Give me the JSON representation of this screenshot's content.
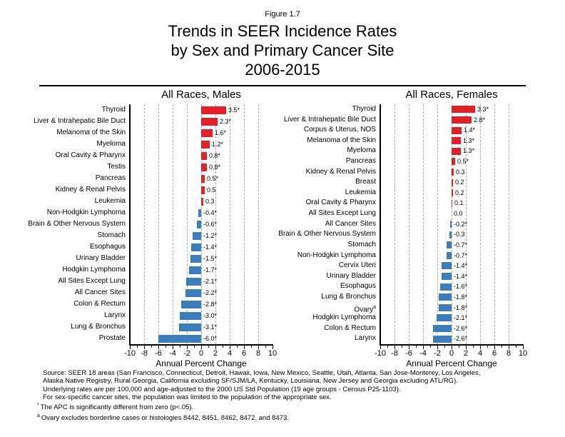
{
  "figure_label": "Figure 1.7",
  "title_lines": [
    "Trends in SEER Incidence Rates",
    "by Sex and Primary Cancer Site",
    "2006-2015"
  ],
  "colors": {
    "positive_bar": "#e22026",
    "negative_bar": "#3b7ebe",
    "gridline": "#ababab",
    "axis": "#000000"
  },
  "chart_data": [
    {
      "type": "bar",
      "orientation": "horizontal",
      "title": "All Races, Males",
      "xlabel": "Annual Percent Change",
      "xlim": [
        -10,
        10
      ],
      "xticks": [
        -10,
        -8,
        -6,
        -4,
        -2,
        0,
        2,
        4,
        6,
        8,
        10
      ],
      "grid": "dashed vertical at even values",
      "categories": [
        "Thyroid",
        "Liver & Intrahepatic Bile Duct",
        "Melanoma of the Skin",
        "Myeloma",
        "Oral Cavity & Pharynx",
        "Testis",
        "Pancreas",
        "Kidney & Renal Pelvis",
        "Leukemia",
        "Non-Hodgkin Lymphoma",
        "Brain & Other Nervous System",
        "Stomach",
        "Esophagus",
        "Urinary Bladder",
        "Hodgkin Lymphoma",
        "All Sites Except Lung",
        "All Cancer Sites",
        "Colon & Rectum",
        "Larynx",
        "Lung & Bronchus",
        "Prostate"
      ],
      "values": [
        3.5,
        2.3,
        1.6,
        1.2,
        0.8,
        0.8,
        0.5,
        0.5,
        0.3,
        -0.4,
        -0.6,
        -1.2,
        -1.4,
        -1.5,
        -1.7,
        -2.1,
        -2.2,
        -2.8,
        -3.0,
        -3.1,
        -6.0
      ],
      "value_labels": [
        "3.5*",
        "2.3*",
        "1.6*",
        "1.2*",
        "0.8*",
        "0.8*",
        "0.5*",
        "0.5",
        "0.3",
        "-0.4*",
        "-0.6*",
        "-1.2*",
        "-1.4*",
        "-1.5*",
        "-1.7*",
        "-2.1*",
        "-2.2*",
        "-2.8*",
        "-3.0*",
        "-3.1*",
        "-6.0*"
      ]
    },
    {
      "type": "bar",
      "orientation": "horizontal",
      "title": "All Races, Females",
      "xlabel": "Annual Percent Change",
      "xlim": [
        -10,
        10
      ],
      "xticks": [
        -10,
        -8,
        -6,
        -4,
        -2,
        0,
        2,
        4,
        6,
        8,
        10
      ],
      "grid": "dashed vertical at even values",
      "categories": [
        "Thyroid",
        "Liver & Intrahepatic Bile Duct",
        "Corpus & Uterus, NOS",
        "Melanoma of the Skin",
        "Myeloma",
        "Pancreas",
        "Kidney & Renal Pelvis",
        "Breast",
        "Leukemia",
        "Oral Cavity & Pharynx",
        "All Sites Except Lung",
        "All Cancer Sites",
        "Brain & Other Nervous System",
        "Stomach",
        "Non-Hodgkin Lymphoma",
        "Cervix Uteri",
        "Urinary Bladder",
        "Esophagus",
        "Lung & Bronchus",
        "Ovary^a",
        "Hodgkin Lymphoma",
        "Colon & Rectum",
        "Larynx"
      ],
      "values": [
        3.3,
        2.8,
        1.4,
        1.3,
        1.3,
        0.5,
        0.3,
        0.2,
        0.2,
        0.1,
        0.0,
        -0.2,
        -0.3,
        -0.7,
        -0.7,
        -1.4,
        -1.4,
        -1.6,
        -1.8,
        -1.8,
        -2.1,
        -2.6,
        -2.6
      ],
      "value_labels": [
        "3.3*",
        "2.8*",
        "1.4*",
        "1.3*",
        "1.3*",
        "0.5*",
        "0.3",
        "0.2",
        "0.2",
        "0.1",
        "0.0",
        "-0.2*",
        "-0.3",
        "-0.7*",
        "-0.7*",
        "-1.4*",
        "-1.4*",
        "-1.6*",
        "-1.8*",
        "-1.8*",
        "-2.1*",
        "-2.6*",
        "-2.6*"
      ]
    }
  ],
  "footer": {
    "source_lines": [
      "Source: SEER 18 areas (San Francisco, Connecticut, Detroit, Hawaii, Iowa, New Mexico, Seattle, Utah, Atlanta, San Jose-Monterey, Los Angeles,",
      "Alaska Native Registry, Rural Georgia, California excluding SF/SJM/LA, Kentucky, Louisiana, New Jersey and Georgia excluding ATL/RG).",
      "Underlying rates are per 100,000 and age-adjusted to the 2000 US Std Population (19 age groups - Census P25-1103).",
      "For sex-specific cancer sites, the population was limited to the population of the appropriate sex."
    ],
    "footnotes": [
      {
        "marker": "*",
        "text": "The APC is significantly different from zero (p<.05)."
      },
      {
        "marker": "a",
        "text": "Ovary excludes borderline cases or histologies 8442, 8451, 8462, 8472, and 8473."
      }
    ]
  }
}
